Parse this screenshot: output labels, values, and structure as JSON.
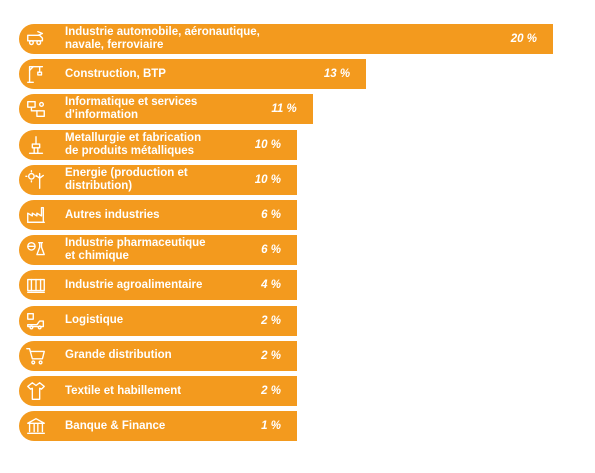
{
  "chart_data": {
    "type": "bar",
    "orientation": "horizontal",
    "title": "",
    "xlabel": "",
    "ylabel": "",
    "xlim": [
      0,
      20
    ],
    "grid": false,
    "bar_color": "#f39a1e",
    "label_color": "#ffffff",
    "categories": [
      "Industrie automobile, aéronautique,\nnavale, ferroviaire",
      "Construction, BTP",
      "Informatique et services\nd'information",
      "Metallurgie et fabrication\nde produits métalliques",
      "Energie (production et distribution)",
      "Autres industries",
      "Industrie pharmaceutique\net chimique",
      "Industrie agroalimentaire",
      "Logistique",
      "Grande distribution",
      "Textile et habillement",
      "Banque & Finance"
    ],
    "values": [
      20,
      13,
      11,
      10,
      10,
      6,
      6,
      4,
      2,
      2,
      2,
      1
    ],
    "value_labels": [
      "20 %",
      "13 %",
      "11 %",
      "10 %",
      "10 %",
      "6 %",
      "6 %",
      "4 %",
      "2 %",
      "2 %",
      "2 %",
      "1 %"
    ],
    "icons": [
      "transport-icon",
      "construction-crane-icon",
      "network-computer-icon",
      "metal-press-icon",
      "solar-wind-energy-icon",
      "factory-icon",
      "pharma-chemistry-icon",
      "food-processing-icon",
      "logistics-icon",
      "shopping-cart-icon",
      "clothing-icon",
      "bank-icon"
    ]
  }
}
